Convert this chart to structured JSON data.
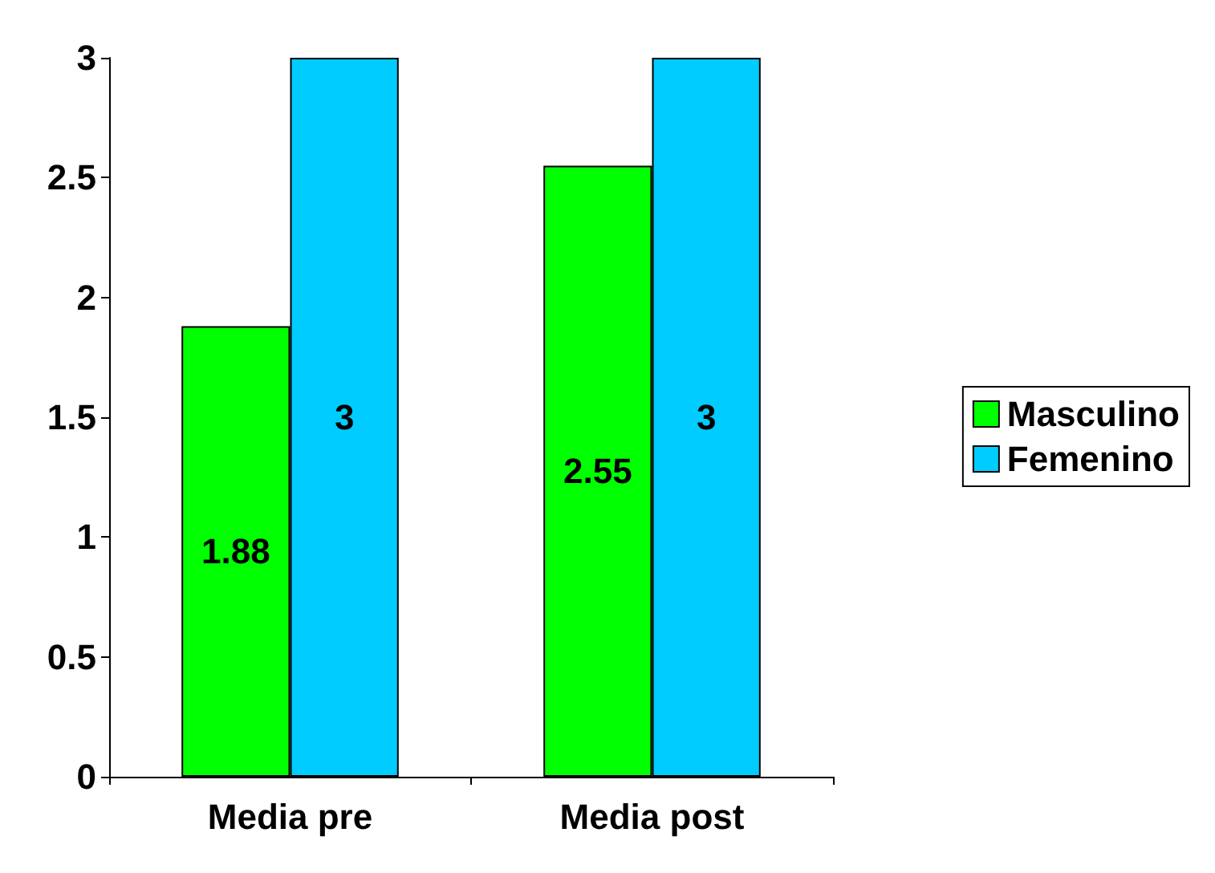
{
  "chart_data": {
    "type": "bar",
    "categories": [
      "Media pre",
      "Media post"
    ],
    "series": [
      {
        "name": "Masculino",
        "color": "#00ff00",
        "values": [
          1.88,
          2.55
        ]
      },
      {
        "name": "Femenino",
        "color": "#00ccff",
        "values": [
          3,
          3
        ]
      }
    ],
    "ylim": [
      0,
      3
    ],
    "yticks": [
      0,
      0.5,
      1,
      1.5,
      2,
      2.5,
      3
    ],
    "grid": false,
    "legend": "right",
    "data_labels": true
  }
}
